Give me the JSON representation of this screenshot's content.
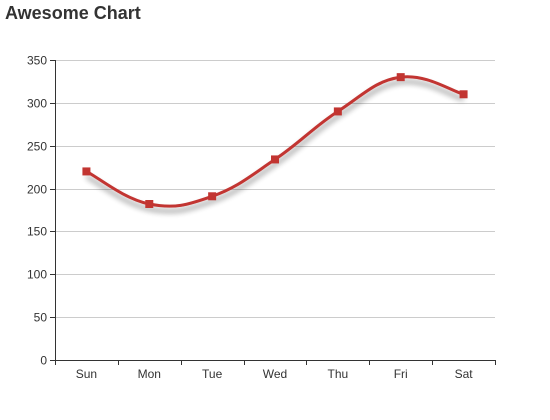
{
  "chart_data": {
    "type": "line",
    "title": "Awesome Chart",
    "categories": [
      "Sun",
      "Mon",
      "Tue",
      "Wed",
      "Thu",
      "Fri",
      "Sat"
    ],
    "series": [
      {
        "values": [
          220,
          182,
          191,
          234,
          290,
          330,
          310
        ],
        "color": "#c23531",
        "smooth": true,
        "marker": "square"
      }
    ],
    "ylim": [
      0,
      350
    ],
    "yticks": [
      0,
      50,
      100,
      150,
      200,
      250,
      300,
      350
    ],
    "grid": true,
    "xlabel": "",
    "ylabel": ""
  }
}
